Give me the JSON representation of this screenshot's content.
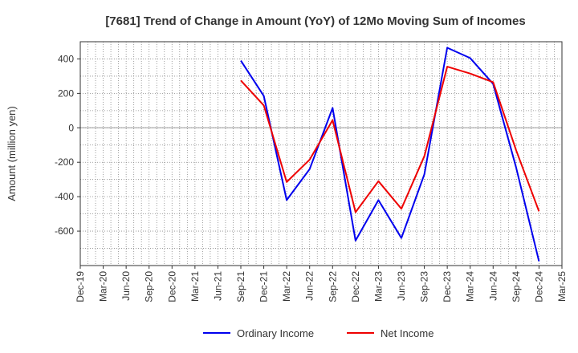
{
  "chart_data": {
    "type": "line",
    "title": "[7681]  Trend of Change in Amount (YoY) of 12Mo Moving Sum of Incomes",
    "ylabel": "Amount (million yen)",
    "xlabel": "",
    "x": [
      "Dec-19",
      "Mar-20",
      "Jun-20",
      "Sep-20",
      "Dec-20",
      "Mar-21",
      "Jun-21",
      "Sep-21",
      "Dec-21",
      "Mar-22",
      "Jun-22",
      "Sep-22",
      "Dec-22",
      "Mar-23",
      "Jun-23",
      "Sep-23",
      "Dec-23",
      "Mar-24",
      "Jun-24",
      "Sep-24",
      "Dec-24",
      "Mar-25"
    ],
    "ylim": [
      -800,
      500
    ],
    "yticks": [
      400,
      200,
      0,
      -200,
      -400,
      -600
    ],
    "grid": true,
    "legend_position": "bottom",
    "series": [
      {
        "name": "Ordinary Income",
        "color": "#0000ee",
        "values": [
          null,
          null,
          null,
          null,
          null,
          null,
          null,
          390,
          185,
          -420,
          -240,
          115,
          -655,
          -420,
          -640,
          -270,
          465,
          405,
          255,
          -230,
          -775,
          null
        ]
      },
      {
        "name": "Net Income",
        "color": "#ee0000",
        "values": [
          null,
          null,
          null,
          null,
          null,
          null,
          null,
          275,
          130,
          -315,
          -185,
          45,
          -490,
          -310,
          -470,
          -165,
          355,
          315,
          265,
          -130,
          -485,
          null
        ]
      }
    ]
  }
}
